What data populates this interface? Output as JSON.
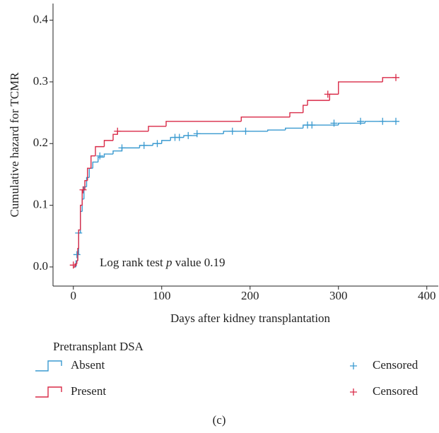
{
  "chart_data": {
    "type": "step",
    "y_label": "Cumulative hazard for TCMR",
    "x_label": "Days after kidney transplantation",
    "annotation": {
      "before": "Log rank test",
      "italic": "p",
      "after": "value 0.19"
    },
    "legend_title": "Pretransplant DSA",
    "caption": "(c)",
    "xlim": [
      -23,
      413
    ],
    "ylim": [
      -0.031,
      0.427
    ],
    "xticks": [
      0,
      100,
      200,
      300,
      400
    ],
    "yticks": [
      {
        "value": 0,
        "label": "0.0"
      },
      {
        "value": 0.1,
        "label": "0.1"
      },
      {
        "value": 0.2,
        "label": "0.2"
      },
      {
        "value": 0.3,
        "label": "0.3"
      },
      {
        "value": 0.4,
        "label": "0.4"
      }
    ],
    "series": [
      {
        "name": "Absent",
        "color": "#3a9ad0",
        "x": [
          0,
          3,
          5,
          6,
          8,
          10,
          12,
          15,
          18,
          22,
          28,
          35,
          45,
          55,
          75,
          90,
          100,
          110,
          125,
          140,
          170,
          220,
          240,
          260,
          300,
          330,
          365
        ],
        "values": [
          0,
          0.01,
          0.02,
          0.055,
          0.09,
          0.11,
          0.13,
          0.145,
          0.16,
          0.17,
          0.178,
          0.183,
          0.188,
          0.193,
          0.197,
          0.2,
          0.205,
          0.21,
          0.213,
          0.216,
          0.22,
          0.222,
          0.225,
          0.23,
          0.233,
          0.236,
          0.236
        ],
        "censored": {
          "name": "Censored",
          "x": [
            4,
            6,
            30,
            55,
            80,
            95,
            115,
            120,
            130,
            140,
            180,
            195,
            265,
            270,
            295,
            325,
            350,
            365
          ],
          "values": [
            0.02,
            0.055,
            0.18,
            0.193,
            0.197,
            0.2,
            0.21,
            0.21,
            0.213,
            0.216,
            0.22,
            0.22,
            0.23,
            0.23,
            0.233,
            0.236,
            0.236,
            0.236
          ]
        }
      },
      {
        "name": "Present",
        "color": "#d92a47",
        "x": [
          0,
          2,
          4,
          5,
          6,
          8,
          10,
          13,
          16,
          20,
          25,
          35,
          45,
          50,
          85,
          105,
          190,
          245,
          260,
          265,
          290,
          300,
          350,
          365
        ],
        "values": [
          0,
          0.005,
          0.01,
          0.03,
          0.06,
          0.1,
          0.125,
          0.14,
          0.16,
          0.18,
          0.195,
          0.205,
          0.215,
          0.22,
          0.228,
          0.236,
          0.243,
          0.25,
          0.262,
          0.27,
          0.28,
          0.3,
          0.307,
          0.307
        ],
        "censored": {
          "name": "Censored",
          "x": [
            0,
            11,
            50,
            288,
            365
          ],
          "values": [
            0.003,
            0.125,
            0.22,
            0.28,
            0.307
          ]
        }
      }
    ]
  }
}
